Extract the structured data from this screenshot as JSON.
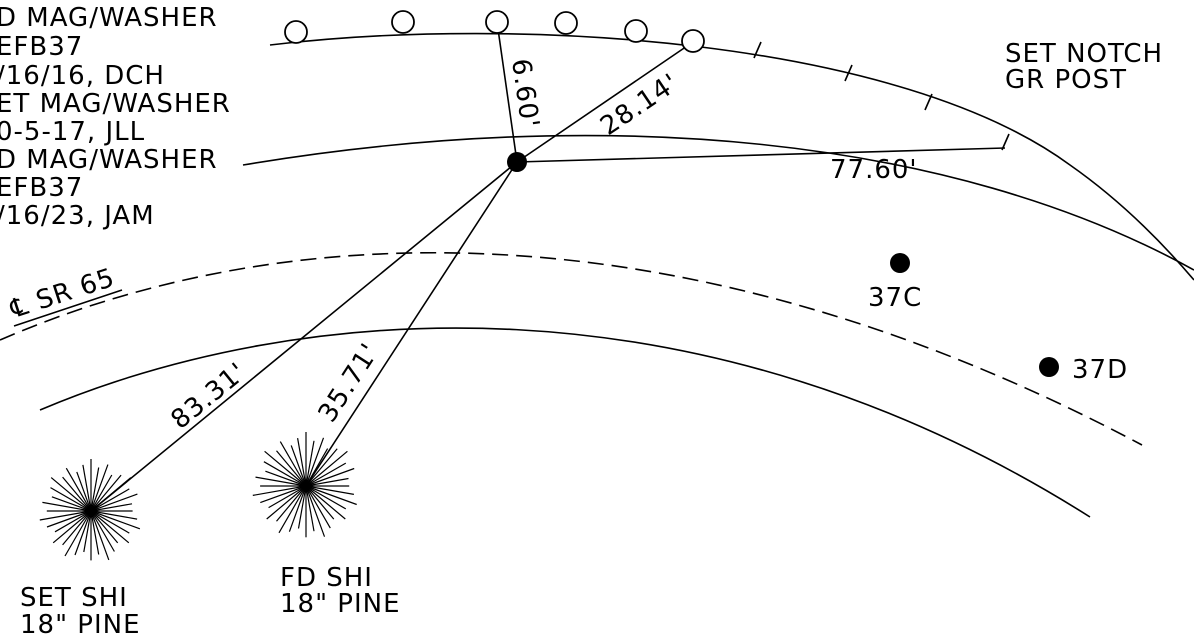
{
  "notes": {
    "line1": "D MAG/WASHER",
    "line2": "EFB37",
    "line3": "/16/16, DCH",
    "line4": "ET MAG/WASHER",
    "line5": "0-5-17, JLL",
    "line6": "D MAG/WASHER",
    "line7": "EFB37",
    "line8": "/16/23, JAM"
  },
  "labels": {
    "notch_line1": "SET NOTCH",
    "notch_line2": "GR POST",
    "centerline": "℄ SR 65",
    "pt_37c": "37C",
    "pt_37d": "37D",
    "tree_left_line1": "SET SHI",
    "tree_left_line2": "18\" PINE",
    "tree_right_line1": "FD SHI",
    "tree_right_line2": "18\" PINE"
  },
  "distances": {
    "d1": "6.60'",
    "d2": "28.14'",
    "d3": "77.60'",
    "d4": "83.31'",
    "d5": "35.71'"
  },
  "icons": {
    "monument": "filled-dot-icon",
    "tree": "tree-burst-icon",
    "post": "open-circle-icon"
  }
}
